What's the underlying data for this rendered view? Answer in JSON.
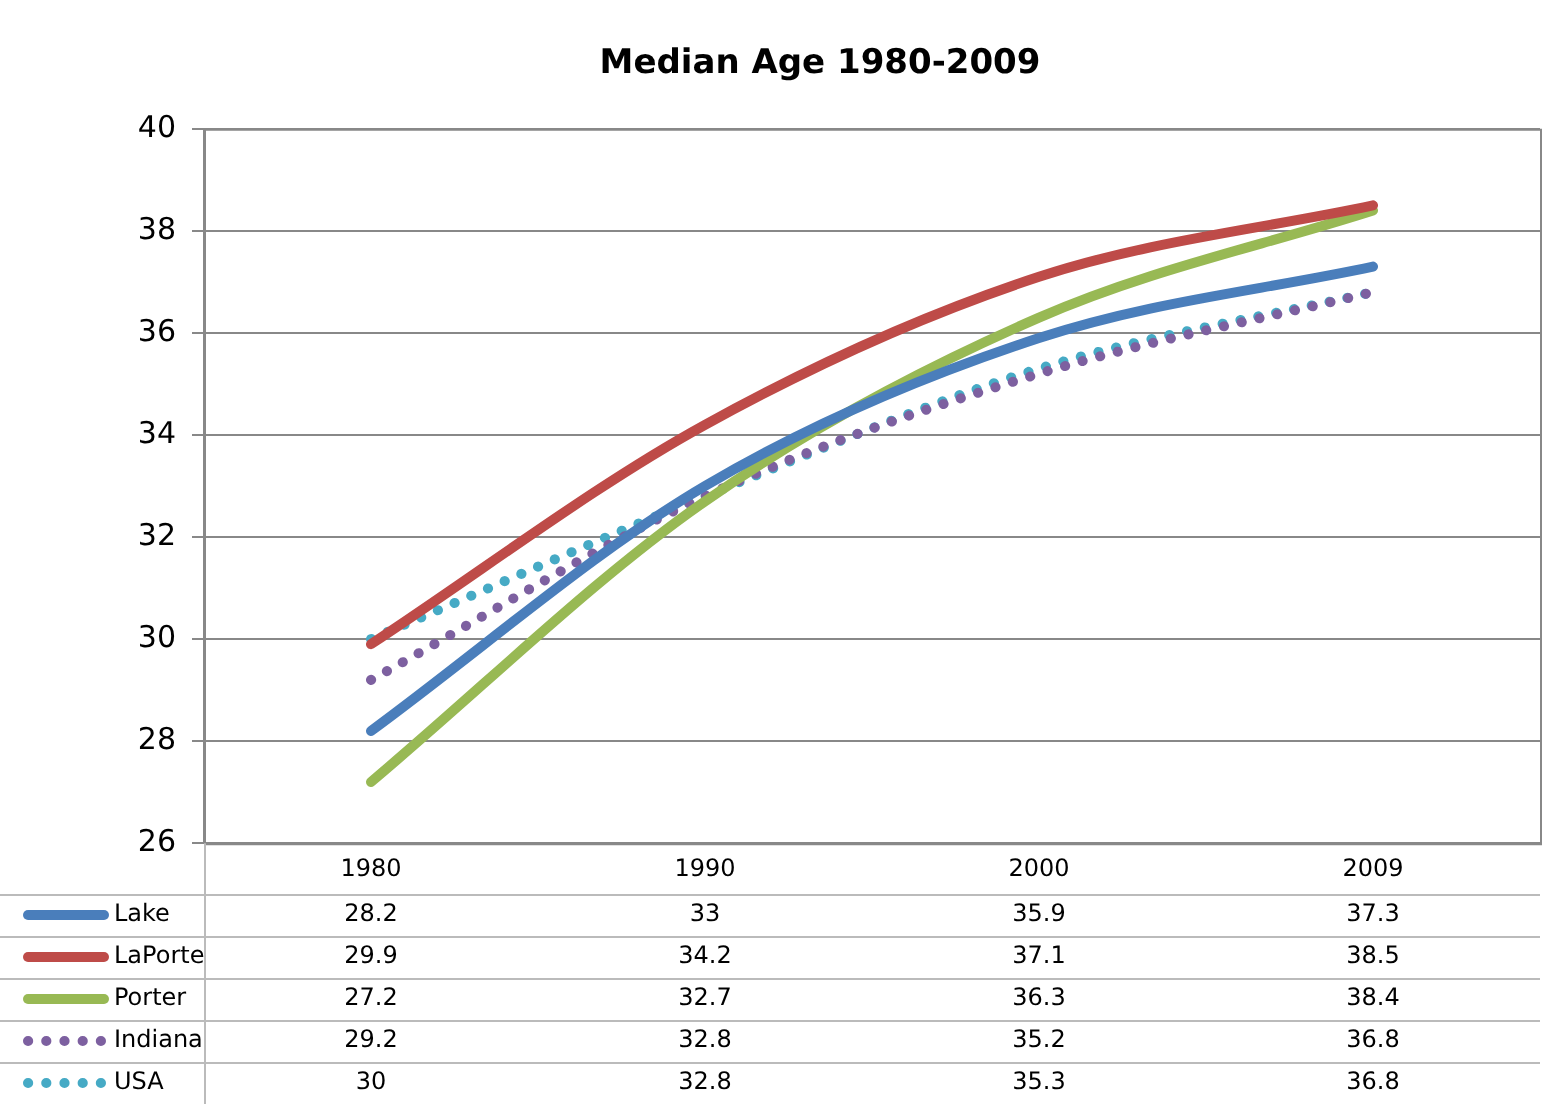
{
  "chart_data": {
    "type": "line",
    "title": "Median Age 1980-2009",
    "categories": [
      "1980",
      "1990",
      "2000",
      "2009"
    ],
    "series": [
      {
        "name": "Lake",
        "color": "#4a7ebb",
        "values": [
          28.2,
          33,
          35.9,
          37.3
        ],
        "line_style": "solid"
      },
      {
        "name": "LaPorte",
        "color": "#be4b48",
        "values": [
          29.9,
          34.2,
          37.1,
          38.5
        ],
        "line_style": "solid"
      },
      {
        "name": "Porter",
        "color": "#98b954",
        "values": [
          27.2,
          32.7,
          36.3,
          38.4
        ],
        "line_style": "solid"
      },
      {
        "name": "Indiana",
        "color": "#7d60a0",
        "values": [
          29.2,
          32.8,
          35.2,
          36.8
        ],
        "line_style": "dotted"
      },
      {
        "name": "USA",
        "color": "#46aac5",
        "values": [
          30,
          32.8,
          35.3,
          36.8
        ],
        "line_style": "dotted"
      }
    ],
    "ylim": [
      26,
      40
    ],
    "yticks": [
      26,
      28,
      30,
      32,
      34,
      36,
      38,
      40
    ],
    "grid": "y",
    "legend": "bottom",
    "data_labels": true,
    "marker": "none"
  }
}
